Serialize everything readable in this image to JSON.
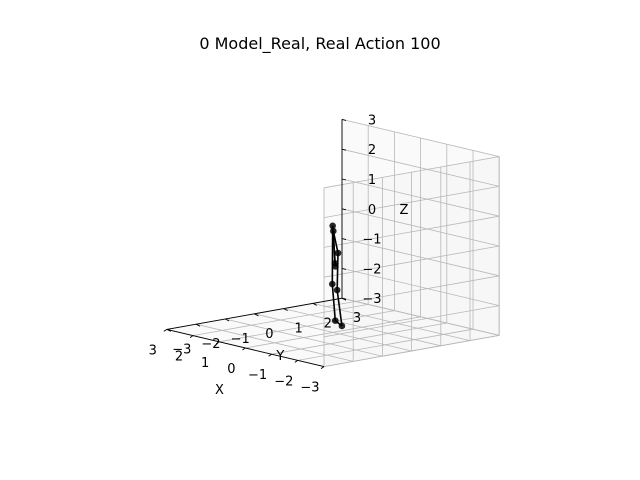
{
  "chart_data": {
    "type": "scatter",
    "title": "0 Model_Real, Real Action 100",
    "xlabel": "X",
    "ylabel": "Y",
    "zlabel": "Z",
    "xlim": [
      -3,
      3
    ],
    "ylim": [
      -3,
      3
    ],
    "zlim": [
      -3,
      3
    ],
    "xticks": [
      "−3",
      "−2",
      "−1",
      "0",
      "1",
      "2",
      "3"
    ],
    "yticks": [
      "−3",
      "−2",
      "−1",
      "0",
      "1",
      "2",
      "3"
    ],
    "zticks": [
      "−3",
      "−2",
      "−1",
      "0",
      "1",
      "2",
      "3"
    ],
    "grid": true,
    "series": [
      {
        "color": "#000000",
        "points": [
          {
            "x": -0.6,
            "y": -0.46,
            "z": -2.4
          },
          {
            "x": -0.23,
            "y": -0.23,
            "z": -1.29
          },
          {
            "x": -0.11,
            "y": -0.11,
            "z": 0.62
          },
          {
            "x": 0.8,
            "y": 0.8,
            "z": -1.09
          },
          {
            "x": -1.5,
            "y": -1.04,
            "z": -2.29
          },
          {
            "x": -1.05,
            "y": -0.8,
            "z": -1.22
          },
          {
            "x": -1.25,
            "y": -0.95,
            "z": 0.09
          },
          {
            "x": 0.11,
            "y": 0.11,
            "z": 0.36
          },
          {
            "x": 0.24,
            "y": 0.28,
            "z": -0.78
          }
        ],
        "edges": [
          [
            0,
            1
          ],
          [
            1,
            2
          ],
          [
            2,
            3
          ],
          [
            0,
            4
          ],
          [
            4,
            5
          ],
          [
            5,
            6
          ],
          [
            6,
            7
          ],
          [
            7,
            8
          ]
        ]
      }
    ]
  }
}
